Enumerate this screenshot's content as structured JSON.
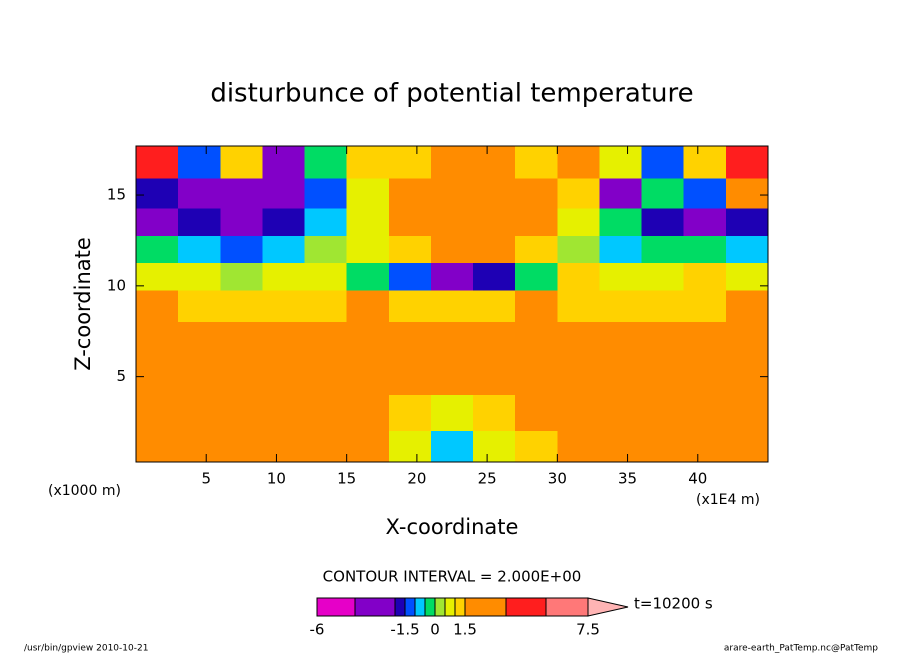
{
  "chart_data": {
    "type": "contour",
    "title": "disturbunce of potential temperature",
    "xlabel": "X-coordinate",
    "ylabel": "Z-coordinate",
    "x_unit": "(x1000 m)",
    "x_multiplier": "(x1E4 m)",
    "contour_interval": "CONTOUR INTERVAL = 2.000E+00",
    "time": "t=10200 s",
    "footer_left": "/usr/bin/gpview   2010-10-21",
    "footer_right": "arare-earth_PatTemp.nc@PatTemp",
    "xlim": [
      0,
      45
    ],
    "ylim": [
      0.3,
      17.7
    ],
    "xticks": [
      5,
      10,
      15,
      20,
      25,
      30,
      35,
      40
    ],
    "yticks": [
      5,
      10,
      15
    ],
    "x": [
      1.5,
      4.5,
      7.5,
      10.5,
      13.5,
      16.5,
      19.5,
      22.5,
      25.5,
      28.5,
      31.5,
      34.5,
      37.5,
      40.5,
      43.5
    ],
    "y": [
      16.8,
      15,
      13.5,
      12,
      10.5,
      9,
      7,
      5,
      3,
      1
    ],
    "z": [
      [
        5,
        -1.5,
        1,
        -4,
        -0.5,
        1,
        1,
        1.5,
        1.5,
        1,
        1.5,
        0.5,
        -1.5,
        1,
        5
      ],
      [
        -2,
        -4,
        -3,
        -4,
        -1.5,
        0.5,
        2,
        2.5,
        2.5,
        1.5,
        1,
        -4,
        -0.5,
        -1.5,
        3
      ],
      [
        -4,
        -2,
        -4,
        -2,
        -1,
        0.5,
        2,
        2,
        2,
        1.5,
        0.5,
        -0.5,
        -2,
        -4,
        -2
      ],
      [
        -0.5,
        -1,
        -1.5,
        -1,
        0,
        0.5,
        1,
        1.5,
        1.5,
        1,
        0,
        -1,
        -0.5,
        -0.5,
        -1
      ],
      [
        0.5,
        0.5,
        0,
        0.5,
        0.5,
        -0.5,
        -1.5,
        -3,
        -2,
        -0.5,
        1,
        0.5,
        0.5,
        1,
        0.5
      ],
      [
        1.5,
        1,
        1,
        1,
        1,
        1.5,
        1,
        1,
        1,
        1.5,
        1,
        1,
        1,
        1,
        1.5
      ],
      [
        2,
        2,
        2,
        2,
        2,
        2,
        2,
        2,
        2,
        2,
        2,
        2,
        2,
        2,
        2
      ],
      [
        2,
        2,
        2,
        2,
        2,
        2,
        2,
        2,
        2,
        2,
        2,
        2,
        2,
        2,
        2
      ],
      [
        1.5,
        1.5,
        1.5,
        1.5,
        1.5,
        1.5,
        1,
        0.5,
        1,
        1.5,
        1.5,
        1.5,
        1.5,
        1.5,
        1.5
      ],
      [
        2,
        1.5,
        2,
        2,
        2,
        2,
        0.5,
        -1,
        0.5,
        1,
        1.5,
        1.5,
        1.5,
        2,
        2
      ]
    ],
    "colorbar": {
      "levels": [
        -6,
        -4,
        -2,
        -1.5,
        -1,
        -0.5,
        0,
        0.5,
        1,
        1.5,
        3.5,
        5.5,
        7.5
      ],
      "colors": [
        "#e600c8",
        "#8200c8",
        "#1e00b4",
        "#0050ff",
        "#00c8ff",
        "#00dc64",
        "#a0e632",
        "#e6f000",
        "#ffd200",
        "#ff8c00",
        "#ff1e1e",
        "#ff7878",
        "#ffb4b4"
      ],
      "ticks": [
        -6,
        -1.5,
        0,
        1.5,
        7.5
      ]
    }
  }
}
